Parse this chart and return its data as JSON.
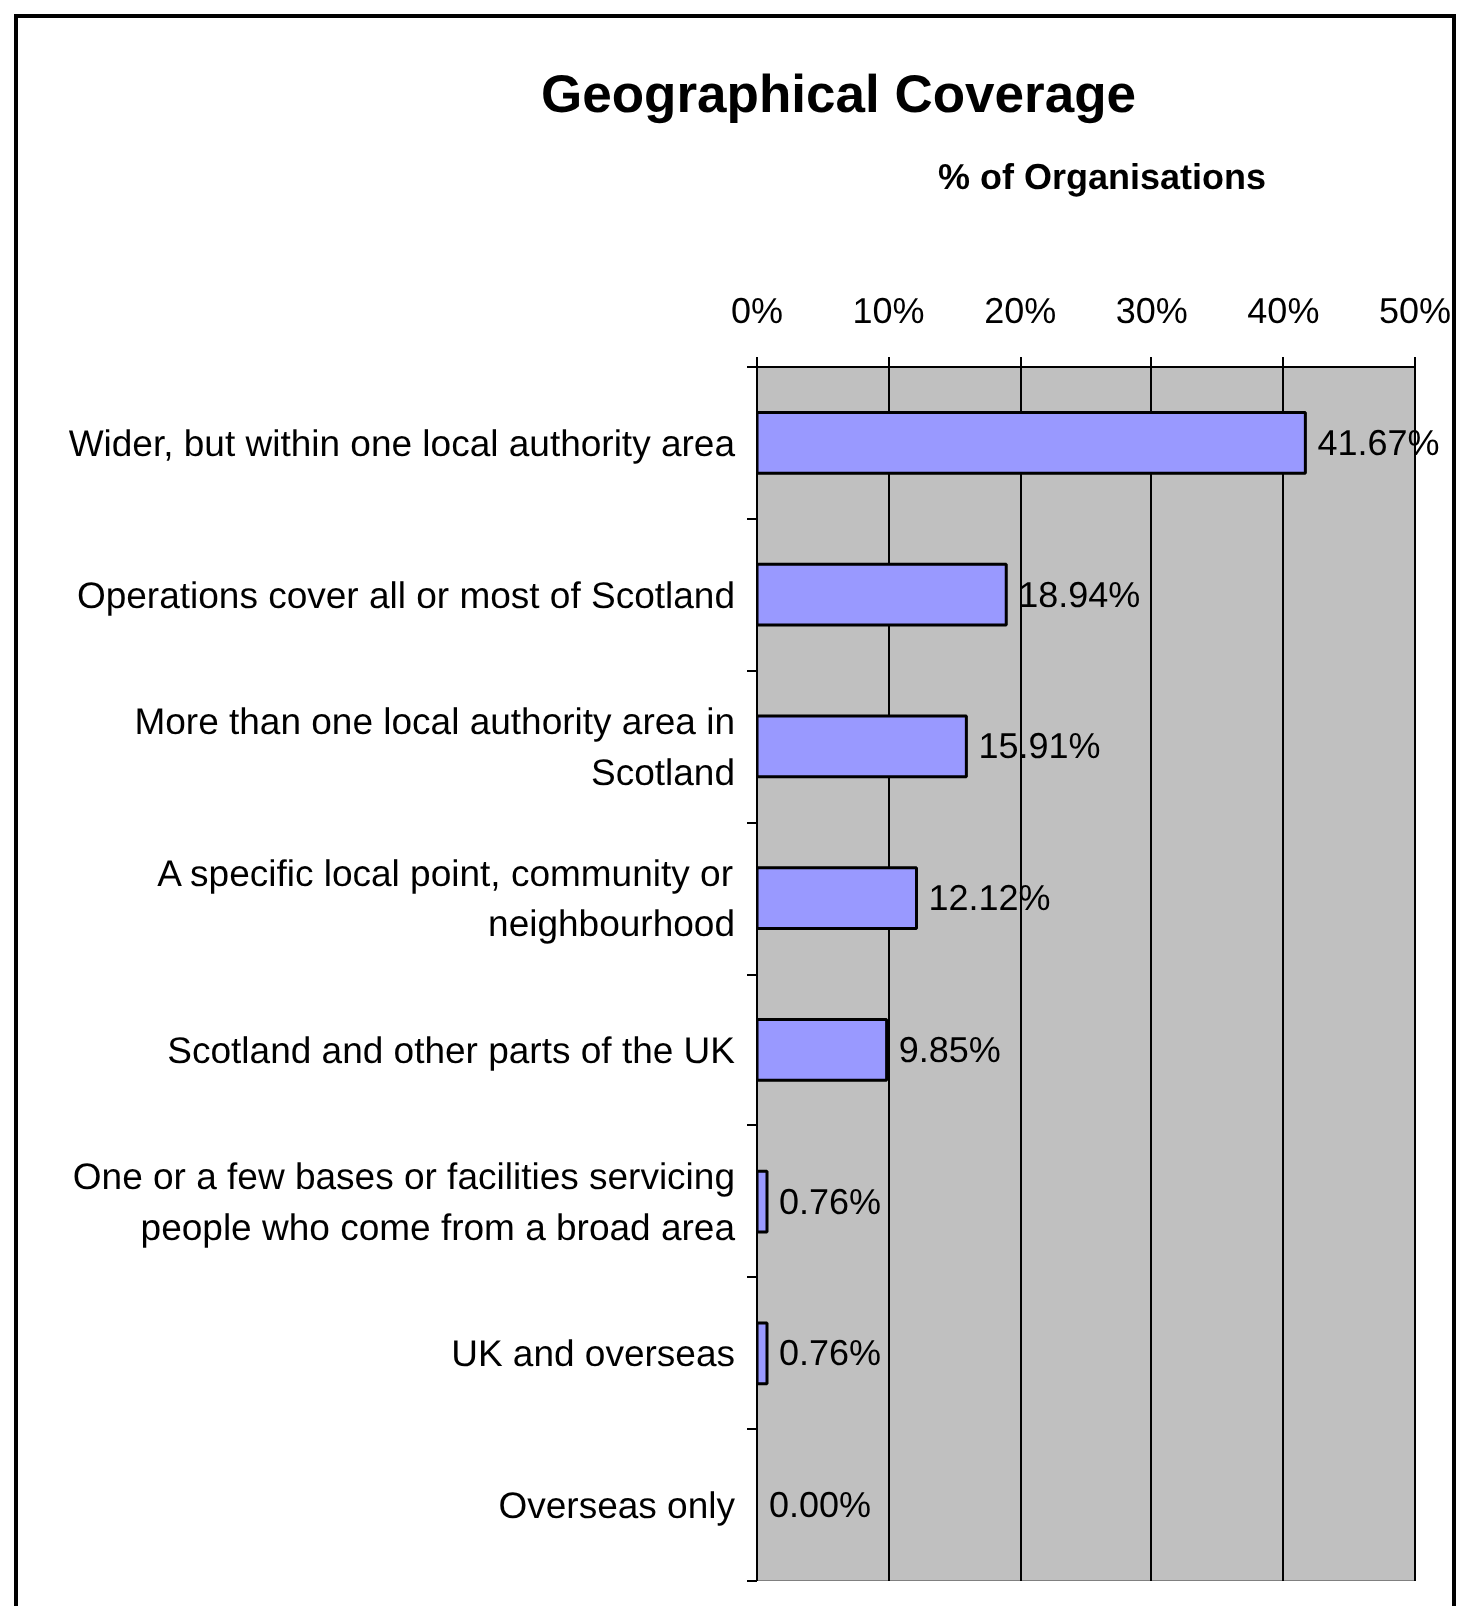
{
  "chart_data": {
    "type": "bar",
    "orientation": "horizontal",
    "title": "Geographical Coverage",
    "xlabel": "% of Organisations",
    "categories": [
      "Wider, but within one local authority area",
      "Operations cover all or most of Scotland",
      "More than one local authority area in Scotland",
      "A specific local point, community or neighbourhood",
      "Scotland and other parts of the UK",
      "One or a few bases or facilities servicing people who come from a broad area",
      "UK and overseas",
      "Overseas only"
    ],
    "values": [
      41.67,
      18.94,
      15.91,
      12.12,
      9.85,
      0.76,
      0.76,
      0.0
    ],
    "value_labels": [
      "41.67%",
      "18.94%",
      "15.91%",
      "12.12%",
      "9.85%",
      "0.76%",
      "0.76%",
      "0.00%"
    ],
    "color": "#9999ff",
    "xlim": [
      0,
      50
    ],
    "xticks": [
      {
        "value": 0,
        "label": "0%"
      },
      {
        "value": 10,
        "label": "10%"
      },
      {
        "value": 20,
        "label": "20%"
      },
      {
        "value": 30,
        "label": "30%"
      },
      {
        "value": 40,
        "label": "40%"
      },
      {
        "value": 50,
        "label": "50%"
      }
    ],
    "grid": "x"
  }
}
